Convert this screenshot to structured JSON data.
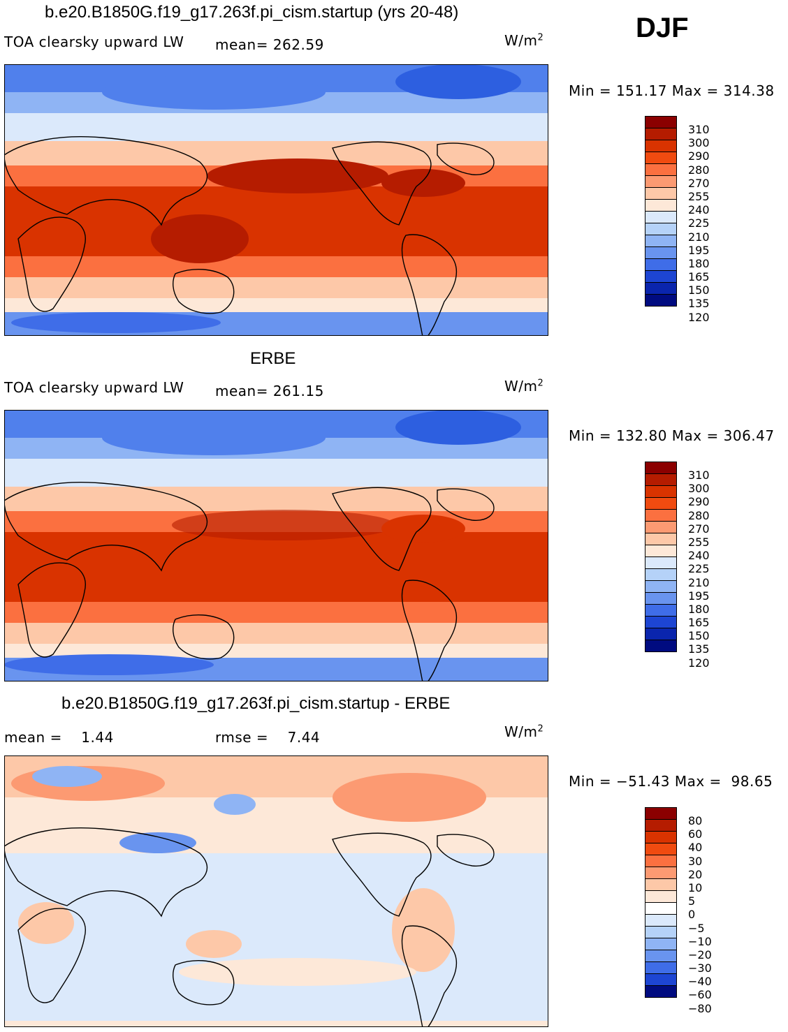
{
  "season": "DJF",
  "units_label": "W/m",
  "units_exp": "2",
  "panels": [
    {
      "title": "b.e20.B1850G.f19_g17.263f.pi_cism.startup (yrs 20-48)",
      "variable": "TOA clearsky upward LW",
      "stat_text": "mean= 262.59",
      "minmax": "Min = 151.17 Max = 314.38",
      "colorbar": {
        "labels": [
          "310",
          "300",
          "290",
          "280",
          "270",
          "255",
          "240",
          "225",
          "210",
          "195",
          "180",
          "165",
          "150",
          "135",
          "120"
        ],
        "colors": [
          "#8b0000",
          "#b51c00",
          "#d93300",
          "#f04b10",
          "#fb7040",
          "#fc9a72",
          "#fdc8a8",
          "#fde8d8",
          "#dbe9fb",
          "#b5d2f8",
          "#8fb4f4",
          "#6994ef",
          "#3f6de8",
          "#1d45d3",
          "#0a25ad",
          "#000b80"
        ]
      }
    },
    {
      "title": "ERBE",
      "variable": "TOA clearsky upward LW",
      "stat_text": "mean= 261.15",
      "minmax": "Min = 132.80 Max = 306.47",
      "colorbar": {
        "labels": [
          "310",
          "300",
          "290",
          "280",
          "270",
          "255",
          "240",
          "225",
          "210",
          "195",
          "180",
          "165",
          "150",
          "135",
          "120"
        ],
        "colors": [
          "#8b0000",
          "#b51c00",
          "#d93300",
          "#f04b10",
          "#fb7040",
          "#fc9a72",
          "#fdc8a8",
          "#fde8d8",
          "#dbe9fb",
          "#b5d2f8",
          "#8fb4f4",
          "#6994ef",
          "#3f6de8",
          "#1d45d3",
          "#0a25ad",
          "#000b80"
        ]
      }
    },
    {
      "title": "b.e20.B1850G.f19_g17.263f.pi_cism.startup - ERBE",
      "stat_mean": "mean =    1.44",
      "stat_rmse": "rmse =    7.44",
      "minmax": "Min = −51.43 Max =  98.65",
      "colorbar": {
        "labels": [
          "80",
          "60",
          "40",
          "30",
          "20",
          "10",
          "5",
          "0",
          "−5",
          "−10",
          "−20",
          "−30",
          "−40",
          "−60",
          "−80"
        ],
        "colors": [
          "#8b0000",
          "#b51c00",
          "#d93300",
          "#f04b10",
          "#fb7040",
          "#fc9a72",
          "#fdc8a8",
          "#fde8d8",
          "#ffffff",
          "#dbe9fb",
          "#b5d2f8",
          "#8fb4f4",
          "#6994ef",
          "#3f6de8",
          "#1d45d3",
          "#000b80"
        ]
      }
    }
  ]
}
